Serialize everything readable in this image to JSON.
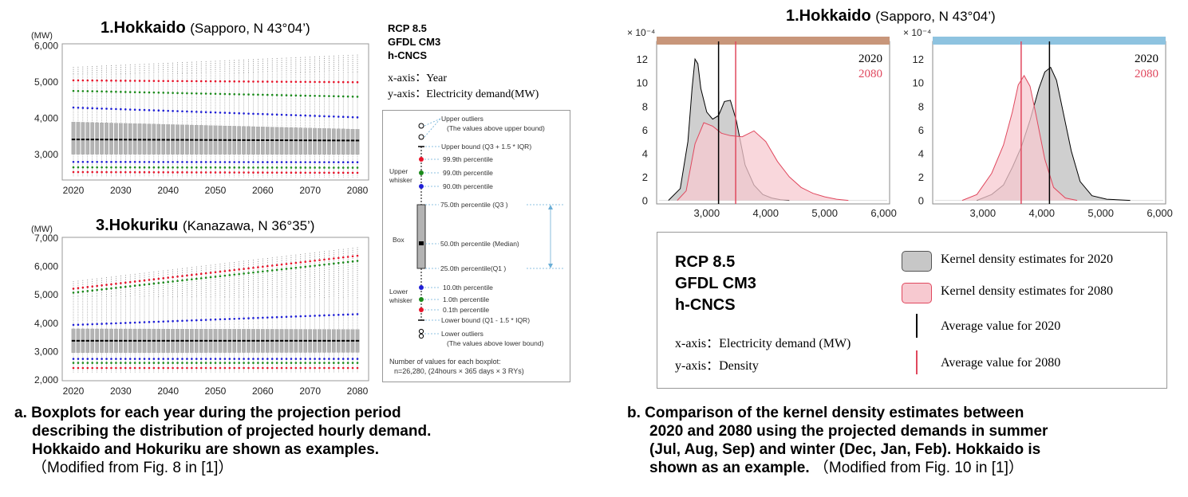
{
  "left": {
    "hokkaido_title": "1.Hokkaido",
    "hokkaido_sub": "(Sapporo, N 43°04’)",
    "hokuriku_title": "3.Hokuriku",
    "hokuriku_sub": "(Kanazawa, N 36°35’)",
    "unit": "(MW)",
    "scenario": [
      "RCP 8.5",
      "GFDL CM3",
      "h-CNCS"
    ],
    "axes": [
      "x-axis：Year",
      "y-axis：Electricity demand(MW)"
    ],
    "legend": {
      "upper_outliers": "Upper outliers",
      "upper_outliers_note": "(The values above upper bound)",
      "upper_bound": "Upper bound (Q3 + 1.5 * IQR)",
      "p999": "99.9th percentile",
      "p990": "99.0th percentile",
      "p900": "90.0th percentile",
      "upper_whisker": [
        "Upper",
        "whisker"
      ],
      "q3": "75.0th percentile (Q3 )",
      "box": "Box",
      "median": "50.0th percentile (Median)",
      "q1": "25.0th percentile(Q1 )",
      "p100": "10.0th percentile",
      "p010": "1.0th percentile",
      "p001": "0.1th percentile",
      "lower_whisker": [
        "Lower",
        "whisker"
      ],
      "lower_bound": "Lower bound (Q1 - 1.5 * IQR)",
      "lower_outliers": "Lower outliers",
      "lower_outliers_note": "(The values above lower bound)",
      "count_note": "Number of values for each boxplot:",
      "count_value": "n=26,280,  (24hours × 365 days × 3  RYs)"
    },
    "caption": [
      "a. Boxplots for each year during the projection period",
      "describing the distribution of projected hourly demand.",
      "Hokkaido and Hokuriku are shown as examples."
    ],
    "caption_note": "（Modified from Fig. 8 in [1]）"
  },
  "right": {
    "title": "1.Hokkaido",
    "title_sub": "(Sapporo, N 43°04’)",
    "series_labels": [
      "2020",
      "2080"
    ],
    "scenario": [
      "RCP 8.5",
      "GFDL CM3",
      "h-CNCS"
    ],
    "axes": [
      "x-axis：Electricity demand (MW)",
      "y-axis：Density"
    ],
    "legend": [
      "Kernel density estimates for 2020",
      "Kernel density estimates for 2080",
      "Average value for 2020",
      "Average value for 2080"
    ],
    "caption": [
      "b. Comparison of the kernel density estimates between",
      "2020 and 2080 using the projected demands in summer",
      "(Jul, Aug, Sep) and winter (Dec, Jan, Feb). Hokkaido is"
    ],
    "caption_last": "shown as an example.",
    "caption_note": "（Modified from Fig. 10 in [1]）"
  },
  "colors": {
    "box_fill": "#b3b3b3",
    "p999": "#e8142a",
    "p990": "#1a8a1a",
    "p900": "#1f1fd6",
    "kde2020": "#c7c7c7",
    "kde2080": "#f7c9d0",
    "line2080": "#e0485e",
    "summer_strip": "#c8967a",
    "winter_strip": "#8ec3e0"
  },
  "chart_data": [
    {
      "type": "box",
      "title": "1.Hokkaido (Sapporo, N 43°04’)",
      "ylabel": "(MW)",
      "ylim": [
        2300,
        6000
      ],
      "yticks": [
        "3,000",
        "4,000",
        "5,000",
        "6,000"
      ],
      "xticks": [
        "2020",
        "2030",
        "2040",
        "2050",
        "2060",
        "2070",
        "2080"
      ],
      "years": [
        2020,
        2080
      ],
      "q1": [
        3010,
        3005
      ],
      "median": [
        3420,
        3390
      ],
      "q3": [
        3900,
        3700
      ],
      "p900": [
        4300,
        4030
      ],
      "p990": [
        4760,
        4600
      ],
      "p999": [
        5050,
        5000
      ],
      "p100": [
        2800,
        2790
      ],
      "p010": [
        2650,
        2640
      ],
      "p001": [
        2520,
        2500
      ],
      "upper_bound": [
        5220,
        5280
      ],
      "outlier_max": [
        5420,
        5760
      ]
    },
    {
      "type": "box",
      "title": "3.Hokuriku (Kanazawa, N 36°35’)",
      "ylabel": "(MW)",
      "ylim": [
        2000,
        7000
      ],
      "yticks": [
        "2,000",
        "3,000",
        "4,000",
        "5,000",
        "6,000",
        "7,000"
      ],
      "xticks": [
        "2020",
        "2030",
        "2040",
        "2050",
        "2060",
        "2070",
        "2080"
      ],
      "years": [
        2020,
        2080
      ],
      "q1": [
        2960,
        2970
      ],
      "median": [
        3380,
        3380
      ],
      "q3": [
        3800,
        3780
      ],
      "p900": [
        3940,
        4320
      ],
      "p990": [
        5080,
        6200
      ],
      "p999": [
        5220,
        6380
      ],
      "p100": [
        2740,
        2740
      ],
      "p010": [
        2600,
        2600
      ],
      "p001": [
        2420,
        2420
      ],
      "upper_bound": [
        4950,
        4900
      ],
      "outlier_max": [
        5480,
        6680
      ]
    },
    {
      "type": "area",
      "title": "Summer (Jul, Aug, Sep)",
      "ylabel_scale": "× 10⁻⁴",
      "xlim": [
        2150,
        6100
      ],
      "ylim": [
        -0.3,
        13.5
      ],
      "xticks": [
        "3,000",
        "4,000",
        "5,000",
        "6,000"
      ],
      "yticks": [
        "0",
        "2",
        "4",
        "6",
        "8",
        "10",
        "12"
      ],
      "series": [
        {
          "name": "2020",
          "x": [
            2350,
            2550,
            2680,
            2750,
            2800,
            2850,
            2900,
            3000,
            3100,
            3200,
            3300,
            3400,
            3500,
            3650,
            3800,
            3950,
            4100,
            4250,
            4400
          ],
          "y": [
            0,
            1.0,
            5.0,
            9.5,
            12.0,
            11.6,
            9.5,
            7.5,
            6.9,
            7.2,
            8.4,
            8.5,
            6.8,
            3.0,
            1.3,
            0.5,
            0.2,
            0.05,
            0
          ]
        },
        {
          "name": "2080",
          "x": [
            2500,
            2650,
            2800,
            2950,
            3100,
            3250,
            3400,
            3600,
            3800,
            4000,
            4200,
            4400,
            4600,
            4800,
            5000,
            5200,
            5400
          ],
          "y": [
            0,
            0.8,
            4.8,
            6.6,
            6.3,
            5.7,
            5.5,
            5.4,
            5.9,
            5.0,
            3.3,
            2.0,
            1.1,
            0.6,
            0.3,
            0.1,
            0
          ]
        }
      ],
      "averages": {
        "2020": 3200,
        "2080": 3490
      }
    },
    {
      "type": "area",
      "title": "Winter (Dec, Jan, Feb)",
      "ylabel_scale": "× 10⁻⁴",
      "xlim": [
        2150,
        6100
      ],
      "ylim": [
        -0.3,
        13.5
      ],
      "xticks": [
        "3,000",
        "4,000",
        "5,000",
        "6,000"
      ],
      "yticks": [
        "0",
        "2",
        "4",
        "6",
        "8",
        "10",
        "12"
      ],
      "series": [
        {
          "name": "2020",
          "x": [
            2900,
            3150,
            3350,
            3500,
            3650,
            3800,
            3950,
            4050,
            4150,
            4250,
            4350,
            4500,
            4650,
            4850,
            5100,
            5500
          ],
          "y": [
            0,
            0.5,
            1.3,
            2.8,
            4.5,
            6.8,
            9.5,
            10.9,
            11.3,
            10.2,
            7.8,
            4.2,
            1.6,
            0.4,
            0.1,
            0
          ]
        },
        {
          "name": "2080",
          "x": [
            2650,
            2900,
            3150,
            3350,
            3500,
            3600,
            3700,
            3800,
            3900,
            4050,
            4200,
            4400,
            4600
          ],
          "y": [
            0,
            0.5,
            2.3,
            4.7,
            7.5,
            9.8,
            10.6,
            9.7,
            7.3,
            3.5,
            1.1,
            0.2,
            0
          ]
        }
      ],
      "averages": {
        "2020": 4130,
        "2080": 3650
      }
    }
  ]
}
